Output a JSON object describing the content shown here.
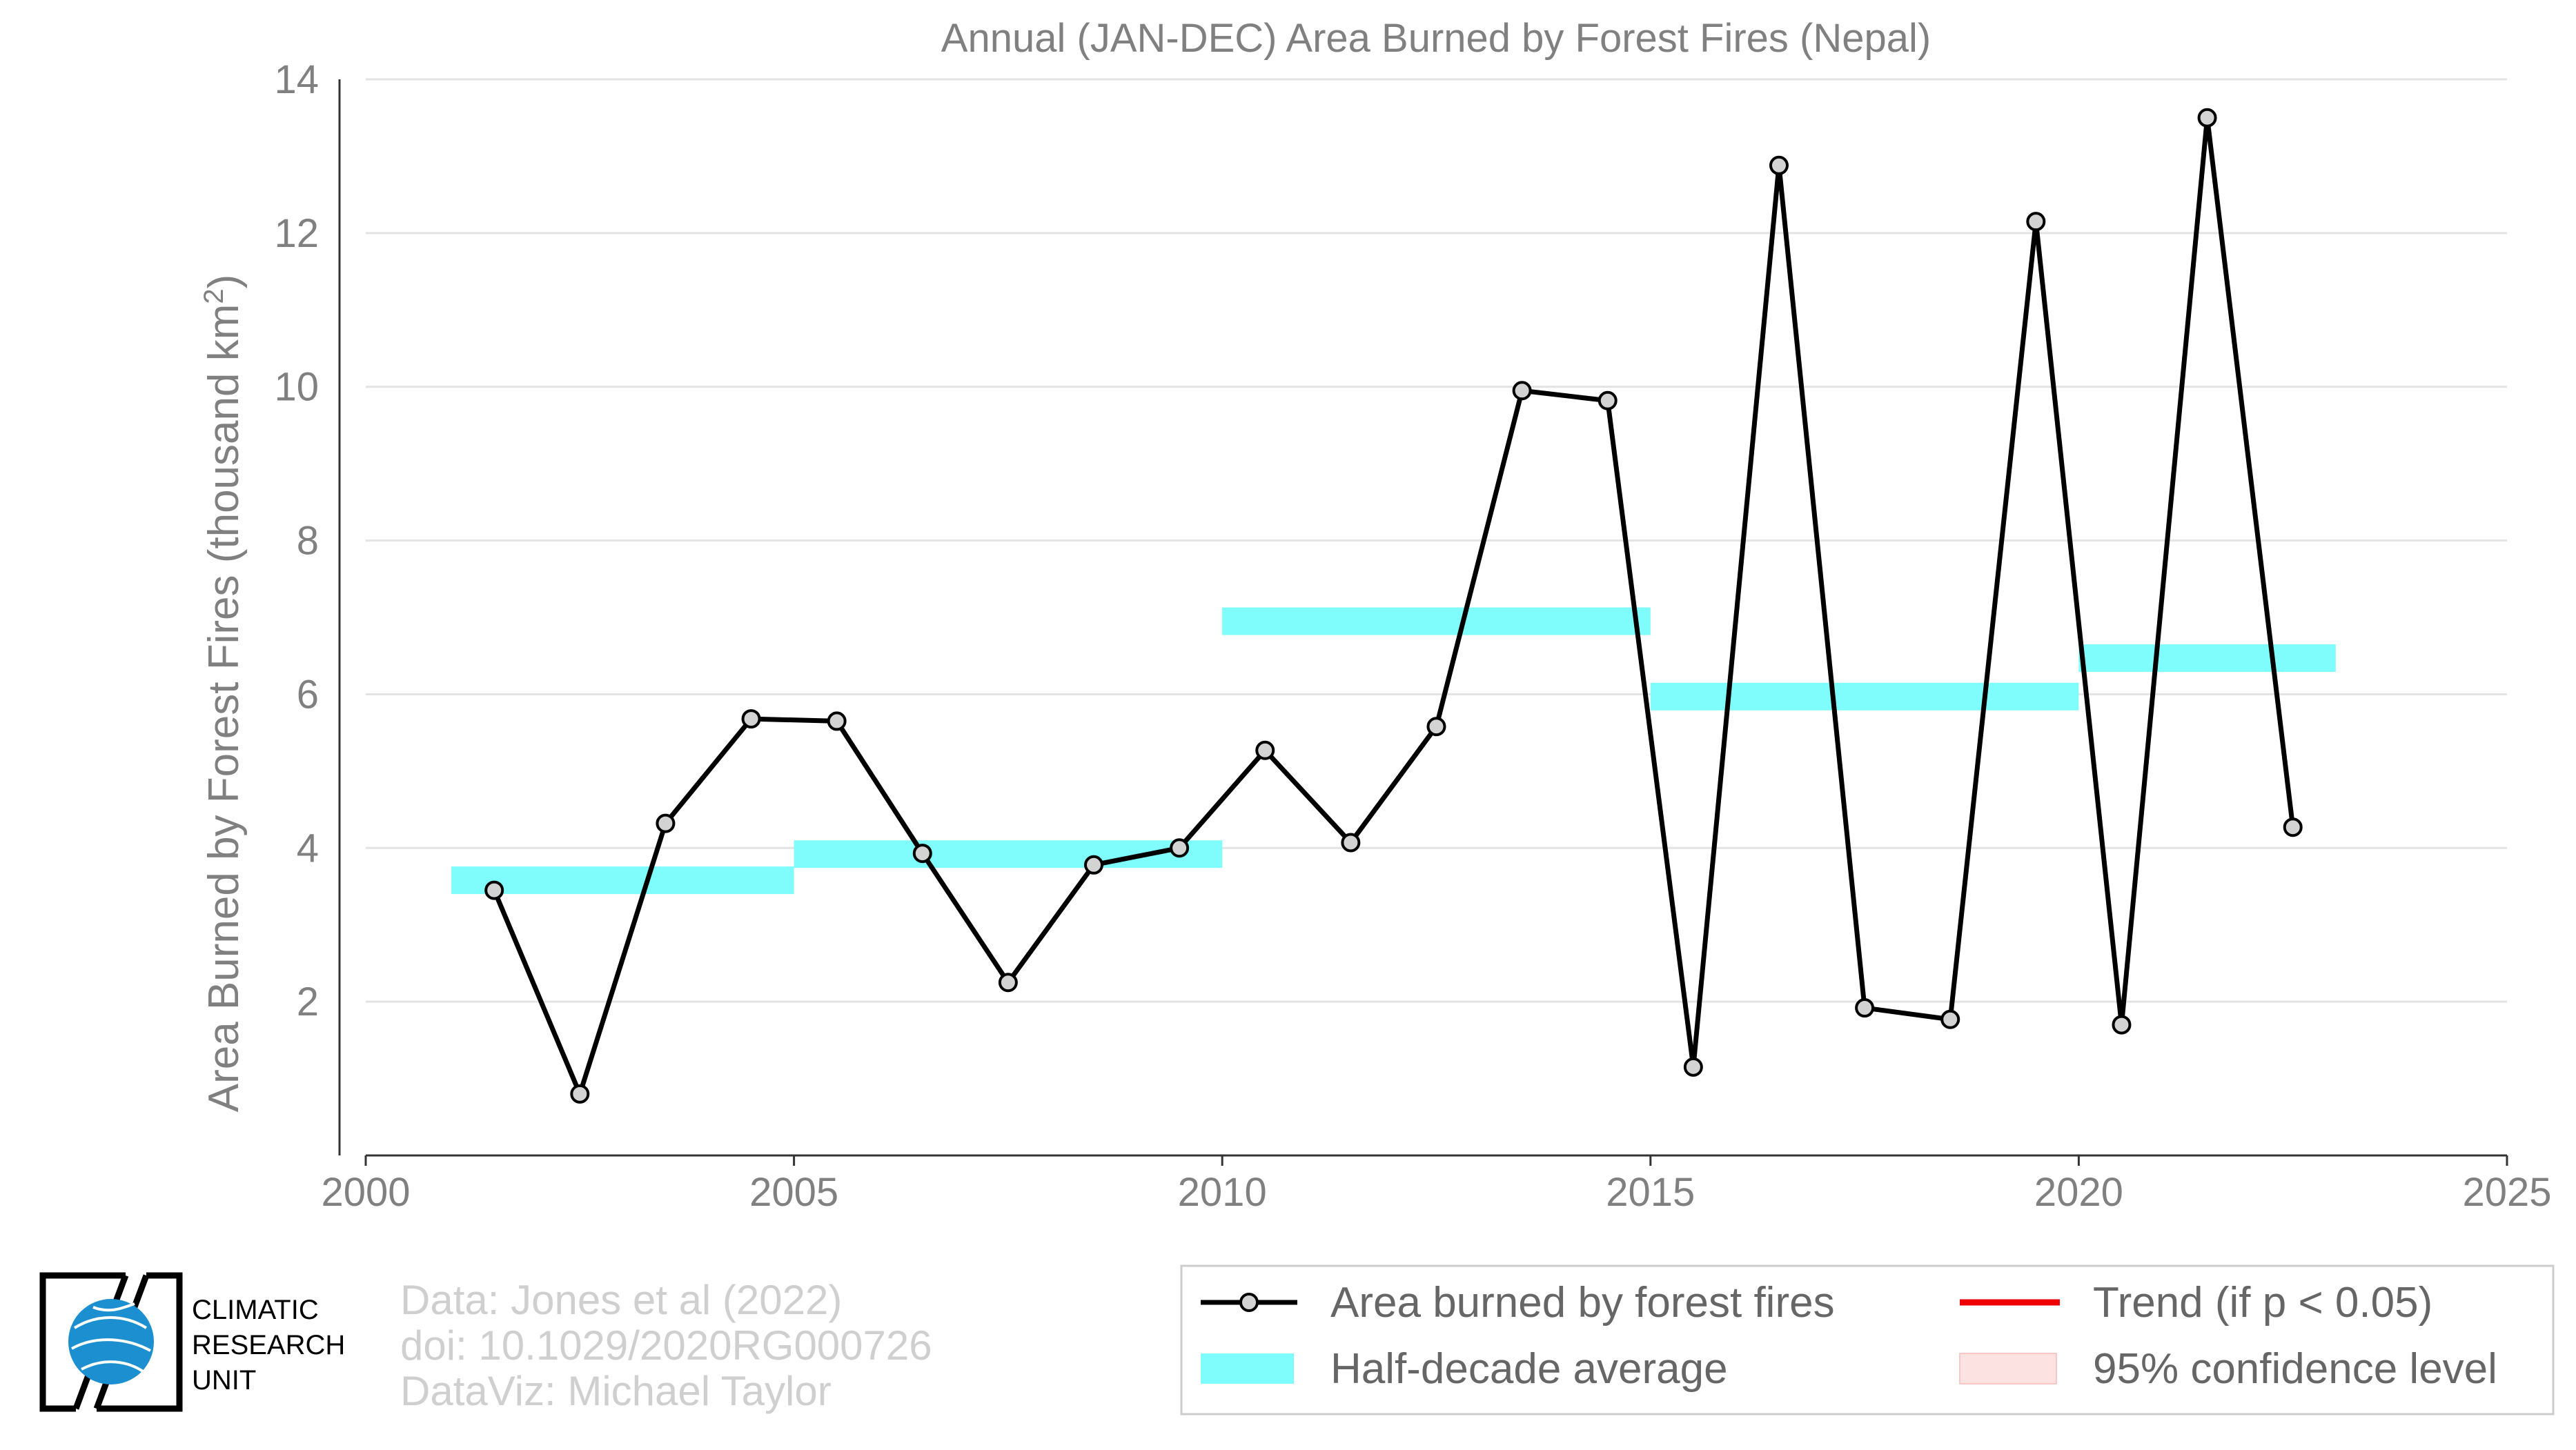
{
  "chart_data": {
    "type": "line",
    "title": "Annual (JAN-DEC) Area Burned by Forest Fires (Nepal)",
    "xlabel": "",
    "ylabel": "Area Burned by Forest Fires (thousand km",
    "ylabel_sup": "2",
    "ylabel_close": ")",
    "xlim": [
      2000,
      2025
    ],
    "ylim": [
      0,
      14
    ],
    "x_ticks": [
      "2000",
      "2005",
      "2010",
      "2015",
      "2020",
      "2025"
    ],
    "y_ticks": [
      "2",
      "4",
      "6",
      "8",
      "10",
      "12",
      "14"
    ],
    "grid": "horizontal",
    "legend_position": "bottom-right",
    "series": [
      {
        "name": "Area burned by forest fires",
        "color": "#000000",
        "marker_fill": "#d3d3d3",
        "x": [
          2001.5,
          2002.5,
          2003.5,
          2004.5,
          2005.5,
          2006.5,
          2007.5,
          2008.5,
          2009.5,
          2010.5,
          2011.5,
          2012.5,
          2013.5,
          2014.5,
          2015.5,
          2016.5,
          2017.5,
          2018.5,
          2019.5,
          2020.5,
          2021.5,
          2022.5
        ],
        "y": [
          3.45,
          0.8,
          4.32,
          5.68,
          5.65,
          3.93,
          2.25,
          3.78,
          4.0,
          5.27,
          4.07,
          5.58,
          9.95,
          9.82,
          1.15,
          12.88,
          1.92,
          1.77,
          12.15,
          1.7,
          13.5,
          4.27
        ]
      }
    ],
    "half_decade_average": {
      "name": "Half-decade average",
      "color": "#7ffcfc",
      "segments": [
        {
          "x0": 2001,
          "x1": 2005,
          "y": 3.58
        },
        {
          "x0": 2005,
          "x1": 2010,
          "y": 3.92
        },
        {
          "x0": 2010,
          "x1": 2015,
          "y": 6.95
        },
        {
          "x0": 2015,
          "x1": 2020,
          "y": 5.97
        },
        {
          "x0": 2020,
          "x1": 2023,
          "y": 6.47
        }
      ]
    },
    "legend": [
      {
        "label": "Area burned by forest fires",
        "kind": "line-marker",
        "color": "#000000"
      },
      {
        "label": "Trend (if p < 0.05)",
        "kind": "line",
        "color": "#ee0000"
      },
      {
        "label": "Half-decade average",
        "kind": "band",
        "color": "#7ffcfc"
      },
      {
        "label": "95% confidence level",
        "kind": "band",
        "color": "#fde2e2"
      }
    ]
  },
  "credits": {
    "line1": "Data: Jones et al (2022)",
    "line2": "doi: 10.1029/2020RG000726",
    "line3": "DataViz: Michael Taylor"
  },
  "logo": {
    "line1": "CLIMATIC",
    "line2": "RESEARCH",
    "line3": "UNIT",
    "accent": "#1b8fd0"
  }
}
